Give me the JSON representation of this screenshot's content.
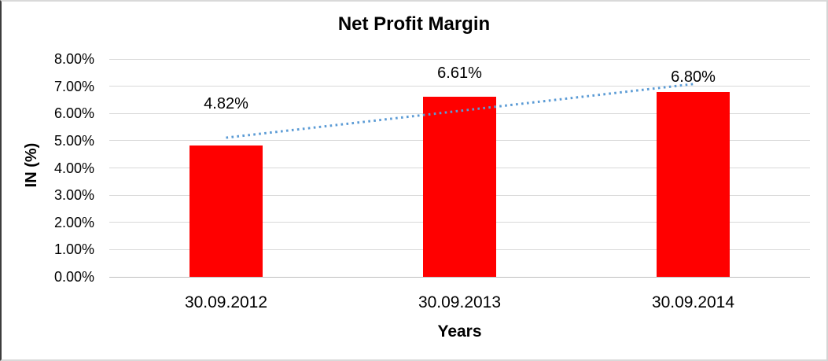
{
  "window": {
    "background": "#FFFFFF"
  },
  "chart_data": {
    "type": "bar",
    "title": "Net Profit Margin",
    "xlabel": "Years",
    "ylabel": "IN (%)",
    "categories": [
      "30.09.2012",
      "30.09.2013",
      "30.09.2014"
    ],
    "values": [
      4.82,
      6.61,
      6.8
    ],
    "data_labels": [
      "4.82%",
      "6.61%",
      "6.80%"
    ],
    "ylim": [
      0,
      8
    ],
    "ytick_step": 1,
    "ytick_labels": [
      "0.00%",
      "1.00%",
      "2.00%",
      "3.00%",
      "4.00%",
      "5.00%",
      "6.00%",
      "7.00%",
      "8.00%"
    ],
    "grid": true,
    "legend": "none",
    "bar_color": "#FF0000",
    "gridline_color": "#D9D9D9",
    "axis_line_color": "#BFBFBF",
    "text_color": "#000000",
    "trendline": {
      "type": "linear",
      "style": "dotted",
      "color": "#5B9BD5",
      "start_value": 5.11,
      "end_value": 7.08
    }
  }
}
